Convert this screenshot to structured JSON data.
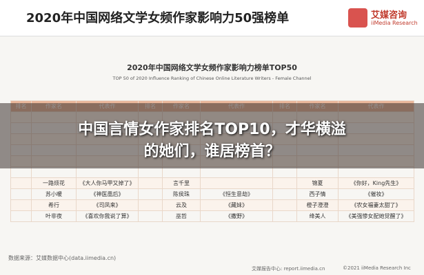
{
  "header": {
    "title": "2020年中国网络文学女频作家影响力50强榜单",
    "logo_cn": "艾媒咨询",
    "logo_en": "iiMedia Research"
  },
  "report": {
    "title": "2020年中国网络文学女频作家影响力榜单TOP50",
    "subtitle": "TOP 50 of 2020 Influence Ranking of Chinese Online Literature Writers - Female Channel"
  },
  "table": {
    "columns": [
      "排名",
      "作家名",
      "代表作",
      "排名",
      "作家名",
      "代表作",
      "排名",
      "作家名",
      "代表作"
    ],
    "rows": [
      [
        "一路烦花",
        "《大人你马甲又掉了》",
        "言千里",
        "",
        "锦夏",
        "《你好，King先生》"
      ],
      [
        "苏小暖",
        "《神医凰后》",
        "陈侯珠",
        "《恒生意劫》",
        "西子情",
        "《催妆》"
      ],
      [
        "希行",
        "《司凤来》",
        "云及",
        "《藏妹》",
        "橙子澄澄",
        "《农女福妻太甜了》"
      ],
      [
        "叶非夜",
        "《喜欢你我说了算》",
        "巫哲",
        "《撒野》",
        "绛美人",
        "《美强惨女配她觉醒了》"
      ]
    ]
  },
  "overlay": {
    "line1": "中国言情女作家排名TOP10，才华横溢",
    "line2": "的她们，谁居榜首？"
  },
  "footer": {
    "source": "数据来源：艾媒数据中心(data.iimedia.cn)",
    "report_center": "艾媒报告中心: report.iimedia.cn",
    "copyright": "©2021  iiMedia Research Inc"
  }
}
